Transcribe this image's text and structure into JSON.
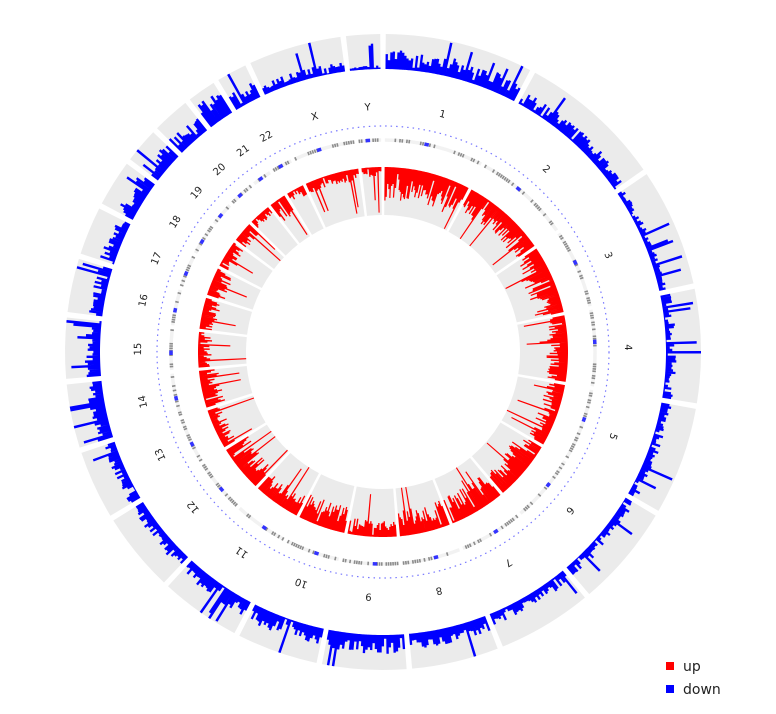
{
  "chart_data": {
    "type": "circos",
    "chromosomes": [
      "1",
      "2",
      "3",
      "4",
      "5",
      "6",
      "7",
      "8",
      "9",
      "10",
      "11",
      "12",
      "13",
      "14",
      "15",
      "16",
      "17",
      "18",
      "19",
      "20",
      "21",
      "22",
      "X",
      "Y"
    ],
    "chromosome_sizes_mb": [
      249,
      243,
      198,
      191,
      181,
      171,
      159,
      146,
      141,
      136,
      135,
      133,
      115,
      107,
      102,
      90,
      81,
      78,
      59,
      63,
      48,
      51,
      156,
      57
    ],
    "tracks": [
      {
        "name": "up",
        "color": "#ff0000",
        "position": "inner",
        "direction": "inward"
      },
      {
        "name": "down",
        "color": "#0000ff",
        "position": "outer",
        "direction": "outward"
      }
    ],
    "level_up": [
      0.7,
      0.55,
      0.62,
      0.45,
      0.4,
      0.6,
      0.58,
      0.55,
      0.35,
      0.55,
      0.45,
      0.55,
      0.32,
      0.42,
      0.3,
      0.35,
      0.38,
      0.32,
      0.3,
      0.2,
      0.45,
      0.28,
      0.25,
      0.2
    ],
    "level_down": [
      0.55,
      0.4,
      0.22,
      0.3,
      0.3,
      0.32,
      0.35,
      0.45,
      0.55,
      0.5,
      0.45,
      0.4,
      0.35,
      0.45,
      0.45,
      0.4,
      0.45,
      0.55,
      0.65,
      0.55,
      0.75,
      0.5,
      0.3,
      0.12
    ],
    "inner_ideogram": {
      "style": "cytobands",
      "band_color": "#888888",
      "centromere_color": "#3333ff"
    },
    "legend": {
      "placement": "bottom-right",
      "items": [
        {
          "label": "up",
          "color": "#ff0000"
        },
        {
          "label": "down",
          "color": "#0000ff"
        }
      ]
    },
    "sector_background": "#ebebeb"
  }
}
